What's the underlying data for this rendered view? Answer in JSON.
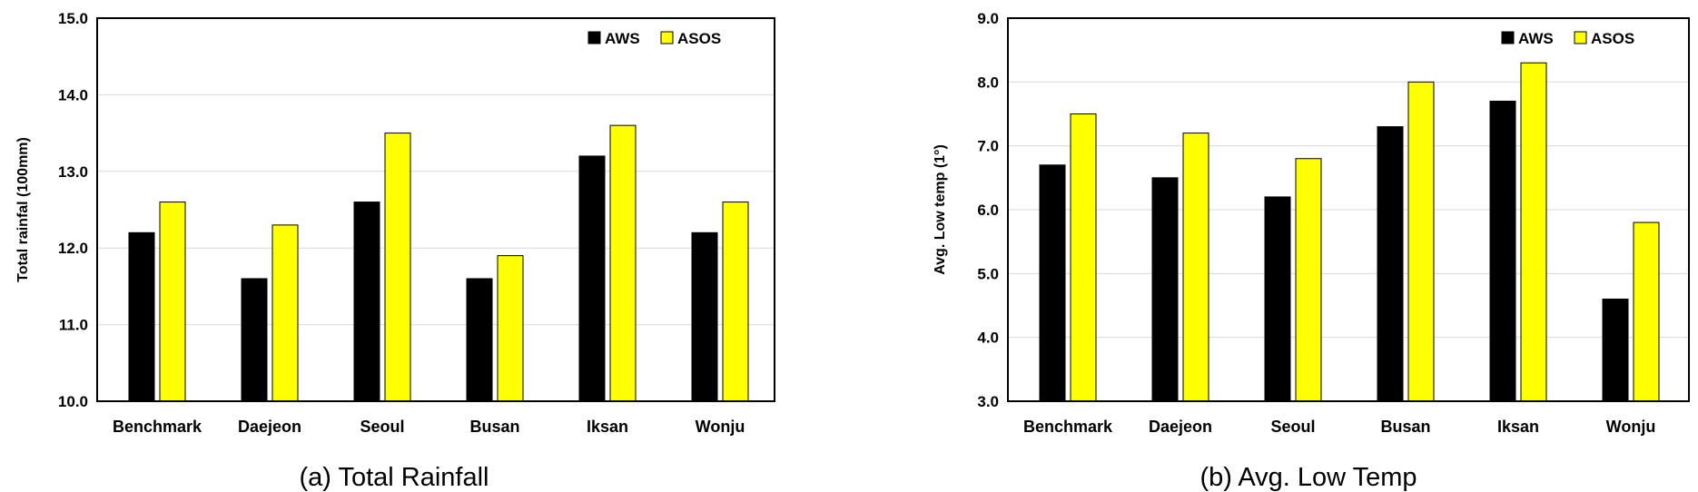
{
  "chart_data": [
    {
      "type": "bar",
      "caption": "(a) Total Rainfall",
      "ylabel": "Total rainfal (100mm)",
      "ylim": [
        10.0,
        15.0
      ],
      "yticks": [
        "10.0",
        "11.0",
        "12.0",
        "13.0",
        "14.0",
        "15.0"
      ],
      "categories": [
        "Benchmark",
        "Daejeon",
        "Seoul",
        "Busan",
        "Iksan",
        "Wonju"
      ],
      "series": [
        {
          "name": "AWS",
          "color": "#000000",
          "values": [
            12.2,
            11.6,
            12.6,
            11.6,
            13.2,
            12.2
          ]
        },
        {
          "name": "ASOS",
          "color": "#ffff00",
          "values": [
            12.6,
            12.3,
            13.5,
            11.9,
            13.6,
            12.6
          ]
        }
      ],
      "grid": true,
      "legend": "top-right"
    },
    {
      "type": "bar",
      "caption": "(b) Avg. Low Temp",
      "ylabel": "Avg. Low temp (1°)",
      "ylim": [
        3.0,
        9.0
      ],
      "yticks": [
        "3.0",
        "4.0",
        "5.0",
        "6.0",
        "7.0",
        "8.0",
        "9.0"
      ],
      "categories": [
        "Benchmark",
        "Daejeon",
        "Seoul",
        "Busan",
        "Iksan",
        "Wonju"
      ],
      "series": [
        {
          "name": "AWS",
          "color": "#000000",
          "values": [
            6.7,
            6.5,
            6.2,
            7.3,
            7.7,
            4.6
          ]
        },
        {
          "name": "ASOS",
          "color": "#ffff00",
          "values": [
            7.5,
            7.2,
            6.8,
            8.0,
            8.3,
            5.8
          ]
        }
      ],
      "grid": true,
      "legend": "top-right"
    }
  ]
}
